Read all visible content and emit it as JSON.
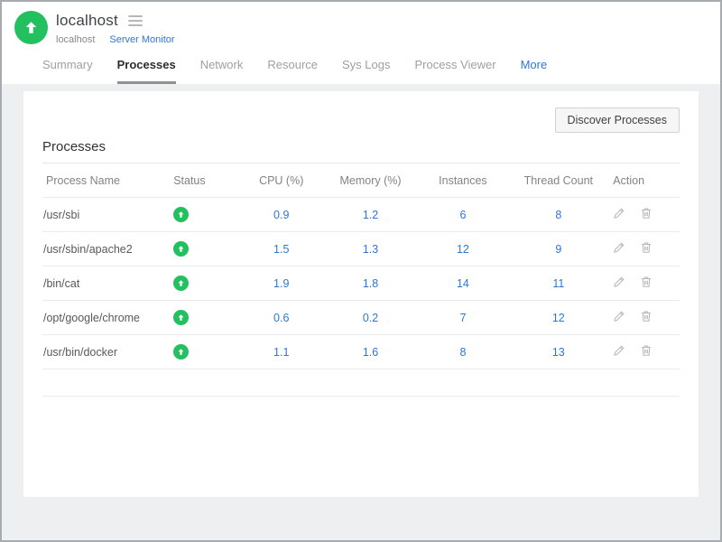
{
  "colors": {
    "green": "#22c05e",
    "blue": "#2e77d4",
    "page_bg": "#edeff1"
  },
  "header": {
    "title": "localhost",
    "breadcrumb": {
      "parent": "localhost",
      "current": "Server Monitor"
    }
  },
  "tabs": [
    {
      "label": "Summary"
    },
    {
      "label": "Processes",
      "active": true
    },
    {
      "label": "Network"
    },
    {
      "label": "Resource"
    },
    {
      "label": "Sys Logs"
    },
    {
      "label": "Process Viewer"
    },
    {
      "label": "More",
      "highlight": true
    }
  ],
  "main": {
    "discover_button_label": "Discover Processes",
    "section_title": "Processes",
    "table": {
      "columns": [
        "Process Name",
        "Status",
        "CPU (%)",
        "Memory (%)",
        "Instances",
        "Thread Count",
        "Action"
      ],
      "rows": [
        {
          "name": "/usr/sbi",
          "status": "up",
          "cpu": "0.9",
          "memory": "1.2",
          "instances": "6",
          "threads": "8"
        },
        {
          "name": "/usr/sbin/apache2",
          "status": "up",
          "cpu": "1.5",
          "memory": "1.3",
          "instances": "12",
          "threads": "9"
        },
        {
          "name": "/bin/cat",
          "status": "up",
          "cpu": "1.9",
          "memory": "1.8",
          "instances": "14",
          "threads": "11"
        },
        {
          "name": "/opt/google/chrome",
          "status": "up",
          "cpu": "0.6",
          "memory": "0.2",
          "instances": "7",
          "threads": "12"
        },
        {
          "name": "/usr/bin/docker",
          "status": "up",
          "cpu": "1.1",
          "memory": "1.6",
          "instances": "8",
          "threads": "13"
        }
      ]
    }
  }
}
